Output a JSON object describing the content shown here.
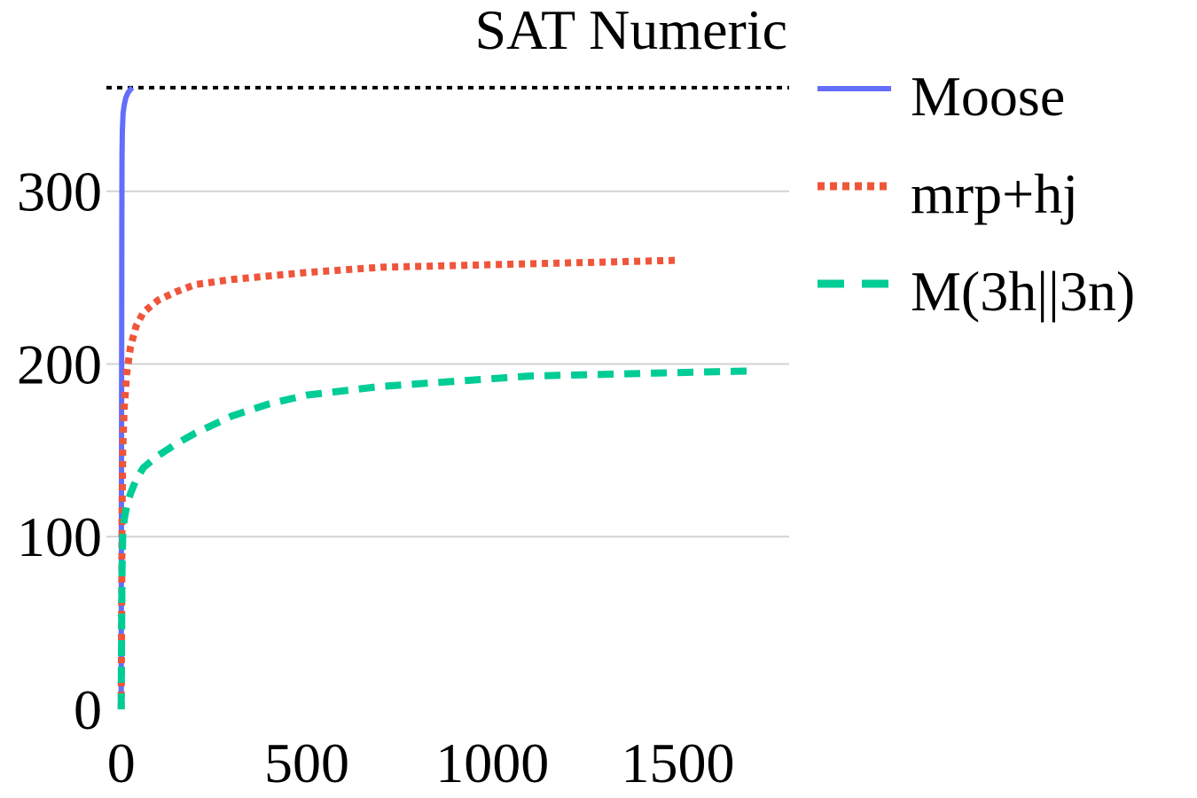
{
  "chart_data": {
    "type": "line",
    "title": "SAT Numeric",
    "xlabel": "",
    "ylabel": "",
    "xlim": [
      -40,
      1800
    ],
    "ylim": [
      0,
      362
    ],
    "x_ticks": [
      0,
      500,
      1000,
      1500
    ],
    "y_ticks": [
      0,
      100,
      200,
      300
    ],
    "grid": true,
    "legend_position": "right",
    "reference_line": {
      "y": 360,
      "style": "dotted",
      "color": "#000000"
    },
    "series": [
      {
        "name": "Moose",
        "color": "#636EFA",
        "style": "solid",
        "x": [
          0,
          0.5,
          1,
          1.5,
          2,
          3,
          5,
          8,
          12,
          18,
          25,
          30
        ],
        "y": [
          0,
          100,
          200,
          280,
          320,
          335,
          345,
          350,
          354,
          357,
          359,
          360
        ]
      },
      {
        "name": "mrp+hj",
        "color": "#EF553B",
        "style": "dotted",
        "x": [
          0,
          1,
          2,
          4,
          8,
          15,
          25,
          40,
          60,
          100,
          150,
          200,
          300,
          400,
          500,
          700,
          900,
          1100,
          1300,
          1500
        ],
        "y": [
          0,
          60,
          110,
          150,
          175,
          195,
          210,
          222,
          230,
          237,
          242,
          246,
          249,
          251,
          253,
          256,
          257,
          258,
          259,
          260
        ]
      },
      {
        "name": "M(3h||3n)",
        "color": "#00CC96",
        "style": "dashed",
        "x": [
          0,
          1,
          2,
          4,
          8,
          15,
          25,
          40,
          60,
          100,
          150,
          200,
          300,
          400,
          500,
          700,
          900,
          1100,
          1300,
          1500,
          1700
        ],
        "y": [
          0,
          50,
          80,
          100,
          110,
          118,
          125,
          133,
          140,
          147,
          154,
          160,
          170,
          177,
          182,
          187,
          190,
          193,
          194,
          195,
          196
        ]
      }
    ]
  }
}
